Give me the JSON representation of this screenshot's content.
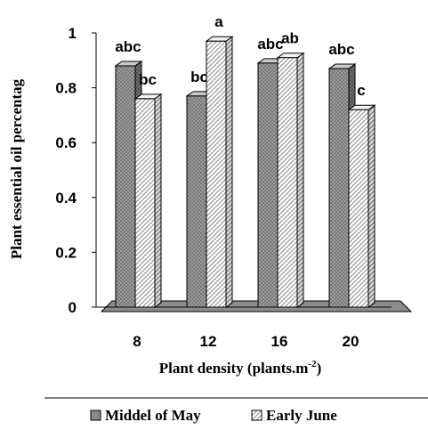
{
  "chart_data": {
    "type": "bar",
    "title": "",
    "xlabel": "Plant density (plants.m",
    "xlabel_sup": "-2",
    "xlabel_end": ")",
    "ylabel": "Plant essential oil percentag",
    "categories": [
      "8",
      "12",
      "16",
      "20"
    ],
    "ylim": [
      0,
      1
    ],
    "yticks": [
      "0",
      "0.2",
      "0.4",
      "0.6",
      "0.8",
      "1"
    ],
    "ytick_values": [
      0,
      0.2,
      0.4,
      0.6,
      0.8,
      1
    ],
    "series": [
      {
        "name": "Middel of May",
        "values": [
          0.88,
          0.77,
          0.89,
          0.87
        ],
        "labels": [
          "abc",
          "bc",
          "abc",
          "abc"
        ],
        "pattern": "dark-crosshatch"
      },
      {
        "name": "Early June",
        "values": [
          0.76,
          0.97,
          0.91,
          0.72
        ],
        "labels": [
          "bc",
          "a",
          "ab",
          "c"
        ],
        "pattern": "light-diagonal"
      }
    ],
    "legend_position": "bottom",
    "grid": false,
    "floor_color": "#8c8c8c"
  }
}
